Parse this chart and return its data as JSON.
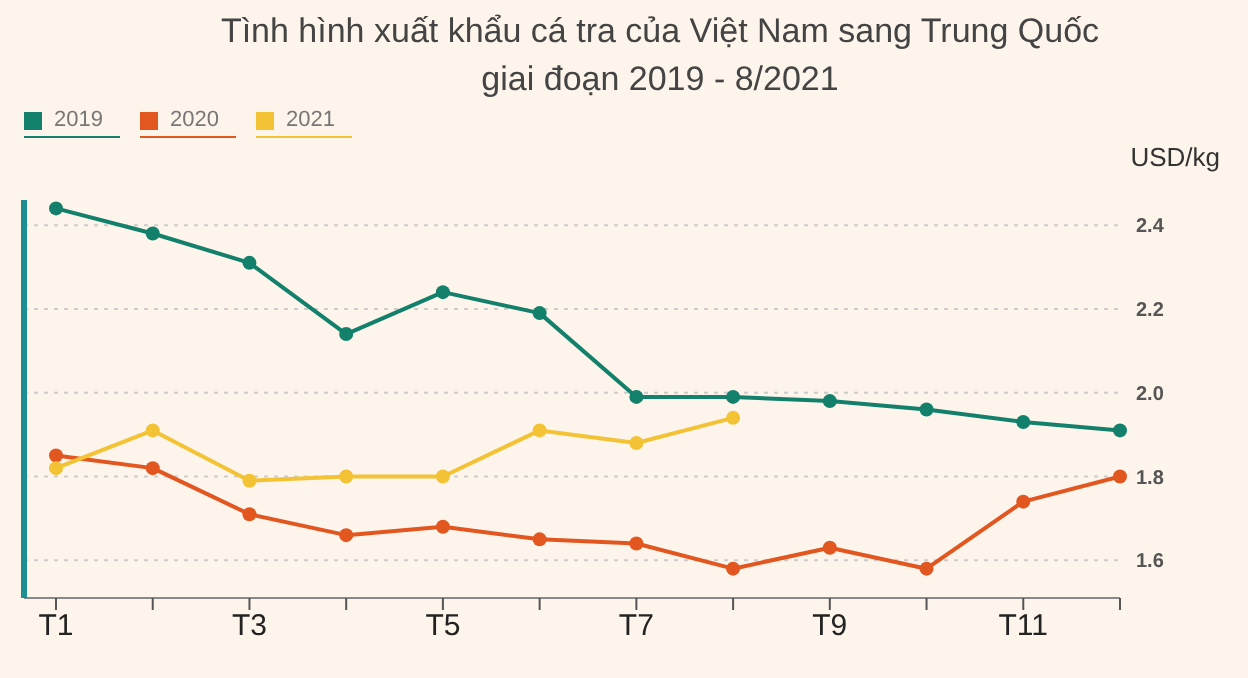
{
  "chart_data": {
    "type": "line",
    "title": "Tình hình xuất khẩu cá tra của Việt Nam sang Trung Quốc giai đoạn 2019 - 8/2021",
    "ylabel": "USD/kg",
    "categories": [
      "T1",
      null,
      "T3",
      null,
      "T5",
      null,
      "T7",
      null,
      "T9",
      null,
      "T11",
      null
    ],
    "series": [
      {
        "name": "2019",
        "color": "#13806c",
        "values": [
          2.44,
          2.38,
          2.31,
          2.14,
          2.24,
          2.19,
          1.99,
          1.99,
          1.98,
          1.96,
          1.93,
          1.91
        ]
      },
      {
        "name": "2020",
        "color": "#e2561f",
        "values": [
          1.85,
          1.82,
          1.71,
          1.66,
          1.68,
          1.65,
          1.64,
          1.58,
          1.63,
          1.58,
          1.74,
          1.8
        ]
      },
      {
        "name": "2021",
        "color": "#f4c335",
        "values": [
          1.82,
          1.91,
          1.79,
          1.8,
          1.8,
          1.91,
          1.88,
          1.94,
          null,
          null,
          null,
          null
        ]
      }
    ],
    "ylim": [
      1.51,
      2.46
    ],
    "yticks": [
      1.6,
      1.8,
      {
        "value": 2,
        "label": "2.0"
      },
      2.2,
      2.4
    ],
    "grid": "y",
    "legend": "top left",
    "marker": "circle",
    "line_style": "solid"
  }
}
